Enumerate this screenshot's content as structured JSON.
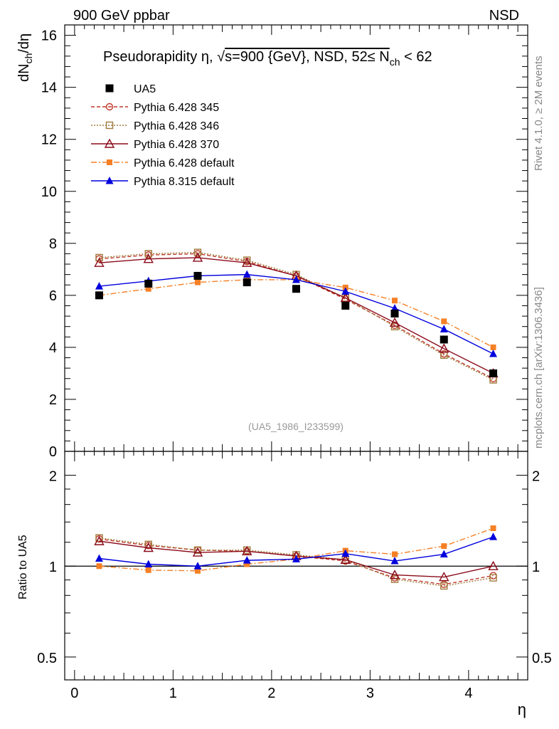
{
  "header": {
    "left": "900 GeV ppbar",
    "right": "NSD"
  },
  "side": {
    "rivet": "Rivet 4.1.0, ≥ 2M events",
    "source": "mcplots.cern.ch [arXiv:1306.3436]"
  },
  "colors": {
    "data": "#000000",
    "p345": "#c0392b",
    "p346": "#a07a3c",
    "p370": "#8b0a1a",
    "p6def": "#f58025",
    "p8def": "#0000dd"
  },
  "chart_data": [
    {
      "type": "line",
      "panel": "main",
      "title": "Pseudorapidity η, √s=900 {GeV}, NSD, 52≤ N_ch < 62",
      "title_parts": {
        "pre": "Pseudorapidity η, ",
        "sqrt": "√",
        "s": "s=900 {GeV}, NSD, 52≤ N",
        "sub": "ch",
        "post": " < 62"
      },
      "ylabel": "dN_ch/dη",
      "ylabel_parts": {
        "a": "dN",
        "sub": "ch",
        "b": "/dη"
      },
      "xlim": [
        -0.1,
        4.6
      ],
      "ylim": [
        0,
        16.4
      ],
      "yticks": [
        0,
        2,
        4,
        6,
        8,
        10,
        12,
        14,
        16
      ],
      "ytick_labels": [
        "0",
        "2",
        "4",
        "6",
        "8",
        "10",
        "12",
        "14",
        "16"
      ],
      "watermark": "(UA5_1986_I233599)",
      "x": [
        0.25,
        0.75,
        1.25,
        1.75,
        2.25,
        2.75,
        3.25,
        3.75,
        4.25
      ],
      "series": [
        {
          "name": "UA5",
          "key": "data",
          "marker": "square-filled",
          "line": "none",
          "values": [
            6.0,
            6.45,
            6.75,
            6.5,
            6.25,
            5.6,
            5.3,
            4.3,
            3.0
          ]
        },
        {
          "name": "Pythia 6.428 345",
          "key": "p345",
          "marker": "circle-open",
          "line": "dashed",
          "values": [
            7.4,
            7.55,
            7.6,
            7.3,
            6.75,
            5.85,
            4.85,
            3.75,
            2.8
          ]
        },
        {
          "name": "Pythia 6.428 346",
          "key": "p346",
          "marker": "square-open",
          "line": "dotted",
          "values": [
            7.45,
            7.6,
            7.65,
            7.35,
            6.8,
            5.9,
            4.8,
            3.7,
            2.75
          ]
        },
        {
          "name": "Pythia 6.428 370",
          "key": "p370",
          "marker": "triangle-open",
          "line": "solid",
          "values": [
            7.25,
            7.4,
            7.45,
            7.25,
            6.75,
            5.9,
            4.95,
            3.95,
            3.0
          ]
        },
        {
          "name": "Pythia 6.428 default",
          "key": "p6def",
          "marker": "square-small",
          "line": "dashdot",
          "values": [
            6.0,
            6.25,
            6.5,
            6.6,
            6.6,
            6.3,
            5.8,
            5.0,
            4.0
          ]
        },
        {
          "name": "Pythia 8.315 default",
          "key": "p8def",
          "marker": "triangle-filled",
          "line": "solid",
          "values": [
            6.35,
            6.55,
            6.75,
            6.8,
            6.6,
            6.15,
            5.5,
            4.7,
            3.75
          ]
        }
      ]
    },
    {
      "type": "line",
      "panel": "ratio",
      "ylabel": "Ratio to UA5",
      "xlabel": "η",
      "xlim": [
        -0.1,
        4.6
      ],
      "ylim": [
        0.42,
        2.4
      ],
      "yscale": "log",
      "yticks": [
        0.5,
        1,
        2
      ],
      "ytick_labels": [
        "0.5",
        "1",
        "2"
      ],
      "xticks": [
        0,
        1,
        2,
        3,
        4
      ],
      "xtick_labels": [
        "0",
        "1",
        "2",
        "3",
        "4"
      ],
      "x": [
        0.25,
        0.75,
        1.25,
        1.75,
        2.25,
        2.75,
        3.25,
        3.75,
        4.25
      ],
      "series": [
        {
          "name": "Pythia 6.428 345",
          "key": "p345",
          "marker": "circle-open",
          "line": "dashed",
          "values": [
            1.23,
            1.17,
            1.13,
            1.12,
            1.08,
            1.04,
            0.915,
            0.87,
            0.93
          ]
        },
        {
          "name": "Pythia 6.428 346",
          "key": "p346",
          "marker": "square-open",
          "line": "dotted",
          "values": [
            1.24,
            1.18,
            1.13,
            1.13,
            1.09,
            1.05,
            0.905,
            0.86,
            0.915
          ]
        },
        {
          "name": "Pythia 6.428 370",
          "key": "p370",
          "marker": "triangle-open",
          "line": "solid",
          "values": [
            1.21,
            1.15,
            1.11,
            1.12,
            1.08,
            1.05,
            0.935,
            0.92,
            1.0
          ]
        },
        {
          "name": "Pythia 6.428 default",
          "key": "p6def",
          "marker": "square-small",
          "line": "dashdot",
          "values": [
            1.0,
            0.97,
            0.965,
            1.015,
            1.055,
            1.125,
            1.095,
            1.165,
            1.335
          ]
        },
        {
          "name": "Pythia 8.315 default",
          "key": "p8def",
          "marker": "triangle-filled",
          "line": "solid",
          "values": [
            1.06,
            1.015,
            1.0,
            1.045,
            1.055,
            1.1,
            1.04,
            1.095,
            1.25
          ]
        }
      ]
    }
  ]
}
